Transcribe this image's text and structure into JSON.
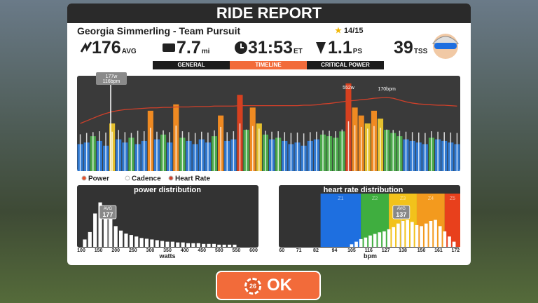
{
  "header": {
    "title": "RIDE REPORT",
    "ride_name": "Georgia Simmerling - Team Pursuit",
    "stars": "14/15"
  },
  "stats": [
    {
      "value": 176,
      "unit": "AVG"
    },
    {
      "value": 7.7,
      "unit": "mi"
    },
    {
      "value": "31:53",
      "unit": "ET"
    },
    {
      "value": 1.1,
      "unit": "PS"
    },
    {
      "value": 39,
      "unit": "TSS"
    }
  ],
  "tabs": [
    "GENERAL",
    "TIMELINE",
    "CRITICAL POWER"
  ],
  "timeline": {
    "type": "bar",
    "ylim": [
      0,
      600
    ],
    "y2lim": [
      0,
      220
    ],
    "series": [
      {
        "name": "Power",
        "color": "#e8502a",
        "values": [
          170,
          180,
          220,
          190,
          160,
          300,
          200,
          180,
          210,
          170,
          190,
          380,
          200,
          230,
          180,
          420,
          210,
          190,
          170,
          200,
          180,
          220,
          350,
          190,
          200,
          480,
          260,
          400,
          300,
          230,
          200,
          210,
          190,
          170,
          180,
          160,
          190,
          200,
          230,
          220,
          210,
          250,
          552,
          400,
          350,
          300,
          380,
          330,
          260,
          240,
          220,
          200,
          190,
          180,
          170,
          210,
          200,
          190,
          180,
          170
        ],
        "colors": [
          "#2f78d0",
          "#2f78d0",
          "#4aa84a",
          "#2f78d0",
          "#2f78d0",
          "#e5c02e",
          "#2f78d0",
          "#2f78d0",
          "#4aa84a",
          "#2f78d0",
          "#2f78d0",
          "#ef8a22",
          "#2f78d0",
          "#4aa84a",
          "#2f78d0",
          "#ef8a22",
          "#4aa84a",
          "#2f78d0",
          "#2f78d0",
          "#2f78d0",
          "#2f78d0",
          "#4aa84a",
          "#ef8a22",
          "#2f78d0",
          "#2f78d0",
          "#d6401f",
          "#4aa84a",
          "#ef8a22",
          "#e5c02e",
          "#4aa84a",
          "#2f78d0",
          "#4aa84a",
          "#2f78d0",
          "#2f78d0",
          "#2f78d0",
          "#2f78d0",
          "#2f78d0",
          "#2f78d0",
          "#4aa84a",
          "#4aa84a",
          "#4aa84a",
          "#4aa84a",
          "#d6401f",
          "#ef8a22",
          "#ef8a22",
          "#e5c02e",
          "#ef8a22",
          "#e5c02e",
          "#4aa84a",
          "#4aa84a",
          "#4aa84a",
          "#2f78d0",
          "#2f78d0",
          "#2f78d0",
          "#2f78d0",
          "#4aa84a",
          "#2f78d0",
          "#2f78d0",
          "#2f78d0",
          "#2f78d0"
        ]
      },
      {
        "name": "Cadence",
        "color": "#ffffff",
        "axis": "y2",
        "values": [
          85,
          88,
          90,
          92,
          89,
          91,
          95,
          90,
          88,
          93,
          92,
          100,
          91,
          94,
          90,
          105,
          92,
          90,
          88,
          91,
          89,
          94,
          102,
          90,
          92,
          110,
          96,
          104,
          98,
          93,
          91,
          92,
          90,
          88,
          89,
          87,
          90,
          91,
          94,
          93,
          92,
          96,
          115,
          106,
          102,
          98,
          104,
          100,
          96,
          95,
          93,
          91,
          90,
          89,
          88,
          92,
          91,
          90,
          89,
          88
        ]
      },
      {
        "name": "Heart Rate",
        "color": "#d0402a",
        "axis": "y2",
        "values": [
          110,
          116,
          122,
          128,
          133,
          137,
          140,
          142,
          143,
          144,
          145,
          146,
          146,
          147,
          147,
          148,
          148,
          148,
          149,
          149,
          149,
          150,
          150,
          150,
          150,
          151,
          151,
          151,
          151,
          151,
          151,
          151,
          151,
          151,
          151,
          152,
          152,
          153,
          155,
          156,
          158,
          160,
          162,
          163,
          165,
          166,
          168,
          169,
          170,
          168,
          164,
          160,
          157,
          155,
          154,
          153,
          152,
          152,
          151,
          150
        ]
      }
    ],
    "cursor_labels": [
      "177w",
      "116bpm"
    ],
    "peak_labels": [
      "552w",
      "170bpm"
    ]
  },
  "power_distribution": {
    "type": "bar",
    "title": "power distribution",
    "x": [
      110,
      125,
      140,
      155,
      170,
      185,
      200,
      215,
      230,
      245,
      260,
      275,
      290,
      305,
      320,
      335,
      350,
      365,
      380,
      395,
      410,
      425,
      440,
      455,
      470,
      485,
      500,
      515,
      530,
      545
    ],
    "values": [
      10,
      20,
      45,
      60,
      55,
      40,
      28,
      22,
      18,
      16,
      14,
      12,
      11,
      10,
      9,
      8,
      7,
      7,
      6,
      6,
      5,
      5,
      5,
      4,
      4,
      4,
      3,
      3,
      3,
      3
    ],
    "color": "#ffffff",
    "xlim": [
      100,
      600
    ],
    "xticks": [
      100,
      150,
      200,
      250,
      300,
      350,
      400,
      450,
      500,
      550,
      600
    ],
    "ylim": [
      0,
      70
    ],
    "xlabel": "watts",
    "avg_label": "AVG",
    "avg": 177
  },
  "heart_rate_distribution": {
    "type": "bar",
    "title": "heart rate distribution",
    "x": [
      105,
      108,
      111,
      114,
      117,
      120,
      123,
      126,
      129,
      132,
      135,
      138,
      141,
      144,
      147,
      150,
      153,
      156,
      159,
      162,
      165,
      168,
      171
    ],
    "values": [
      5,
      10,
      15,
      18,
      22,
      25,
      28,
      30,
      34,
      38,
      45,
      50,
      52,
      48,
      42,
      40,
      45,
      50,
      52,
      40,
      30,
      20,
      10
    ],
    "color": "#ffffff",
    "xlim": [
      59,
      175
    ],
    "xticks": [
      60,
      71,
      82,
      94,
      105,
      116,
      127,
      138,
      150,
      161,
      172
    ],
    "ylim": [
      0,
      100
    ],
    "xlabel": "bpm",
    "avg_label": "AVG",
    "avg": 137,
    "zones": [
      {
        "name": "Z1",
        "color": "#1e6fe0",
        "from": 85,
        "to": 111
      },
      {
        "name": "Z2",
        "color": "#3fae3f",
        "from": 111,
        "to": 129
      },
      {
        "name": "Z3",
        "color": "#f2c21b",
        "from": 129,
        "to": 147
      },
      {
        "name": "Z4",
        "color": "#f39a1e",
        "from": 147,
        "to": 165
      },
      {
        "name": "Z5",
        "color": "#e8401c",
        "from": 165,
        "to": 175
      }
    ]
  },
  "ok_button": {
    "badge": "26",
    "label": "OK"
  }
}
